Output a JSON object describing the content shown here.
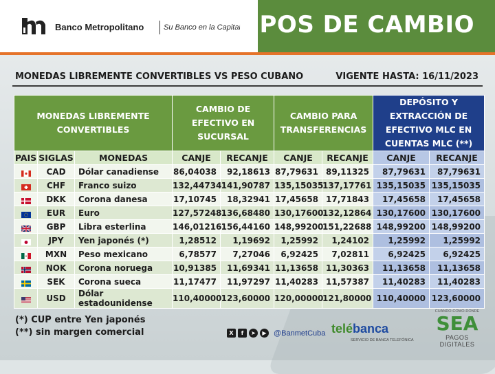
{
  "header": {
    "bank_name": "Banco Metropolitano",
    "slogan": "Su Banco en la Capital",
    "title": "TIPOS DE CAMBIO"
  },
  "subtitle": "MONEDAS LIBREMENTE CONVERTIBLES VS PESO CUBANO",
  "valid_until": "VIGENTE HASTA: 16/11/2023",
  "table": {
    "group_headers": {
      "currencies": "MONEDAS LIBREMENTE CONVERTIBLES",
      "cash": "CAMBIO DE EFECTIVO EN SUCURSAL",
      "transfer": "CAMBIO PARA TRANSFERENCIAS",
      "mlc": "DEPÓSITO Y EXTRACCIÓN DE EFECTIVO MLC EN CUENTAS MLC (**)"
    },
    "columns": [
      "PAIS",
      "SIGLAS",
      "MONEDAS",
      "CANJE",
      "RECANJE",
      "CANJE",
      "RECANJE",
      "CANJE",
      "RECANJE"
    ],
    "rows": [
      {
        "flag": "canada-flag",
        "code": "CAD",
        "name": "Dólar canadiense",
        "cash_canje": "86,04038",
        "cash_recanje": "92,18613",
        "tr_canje": "87,79631",
        "tr_recanje": "89,11325",
        "mlc_canje": "87,79631",
        "mlc_recanje": "87,79631"
      },
      {
        "flag": "switzerland-flag",
        "code": "CHF",
        "name": "Franco suizo",
        "cash_canje": "132,44734",
        "cash_recanje": "141,90787",
        "tr_canje": "135,15035",
        "tr_recanje": "137,17761",
        "mlc_canje": "135,15035",
        "mlc_recanje": "135,15035"
      },
      {
        "flag": "denmark-flag",
        "code": "DKK",
        "name": "Corona danesa",
        "cash_canje": "17,10745",
        "cash_recanje": "18,32941",
        "tr_canje": "17,45658",
        "tr_recanje": "17,71843",
        "mlc_canje": "17,45658",
        "mlc_recanje": "17,45658"
      },
      {
        "flag": "eu-flag",
        "code": "EUR",
        "name": "Euro",
        "cash_canje": "127,57248",
        "cash_recanje": "136,68480",
        "tr_canje": "130,17600",
        "tr_recanje": "132,12864",
        "mlc_canje": "130,17600",
        "mlc_recanje": "130,17600"
      },
      {
        "flag": "uk-flag",
        "code": "GBP",
        "name": "Libra esterlina",
        "cash_canje": "146,01216",
        "cash_recanje": "156,44160",
        "tr_canje": "148,99200",
        "tr_recanje": "151,22688",
        "mlc_canje": "148,99200",
        "mlc_recanje": "148,99200"
      },
      {
        "flag": "japan-flag",
        "code": "JPY",
        "name": "Yen japonés (*)",
        "cash_canje": "1,28512",
        "cash_recanje": "1,19692",
        "tr_canje": "1,25992",
        "tr_recanje": "1,24102",
        "mlc_canje": "1,25992",
        "mlc_recanje": "1,25992"
      },
      {
        "flag": "mexico-flag",
        "code": "MXN",
        "name": "Peso mexicano",
        "cash_canje": "6,78577",
        "cash_recanje": "7,27046",
        "tr_canje": "6,92425",
        "tr_recanje": "7,02811",
        "mlc_canje": "6,92425",
        "mlc_recanje": "6,92425"
      },
      {
        "flag": "norway-flag",
        "code": "NOK",
        "name": "Corona noruega",
        "cash_canje": "10,91385",
        "cash_recanje": "11,69341",
        "tr_canje": "11,13658",
        "tr_recanje": "11,30363",
        "mlc_canje": "11,13658",
        "mlc_recanje": "11,13658"
      },
      {
        "flag": "sweden-flag",
        "code": "SEK",
        "name": "Corona sueca",
        "cash_canje": "11,17477",
        "cash_recanje": "11,97297",
        "tr_canje": "11,40283",
        "tr_recanje": "11,57387",
        "mlc_canje": "11,40283",
        "mlc_recanje": "11,40283"
      },
      {
        "flag": "usa-flag",
        "code": "USD",
        "name": "Dólar estadounidense",
        "cash_canje": "110,40000",
        "cash_recanje": "123,60000",
        "tr_canje": "120,00000",
        "tr_recanje": "121,80000",
        "mlc_canje": "110,40000",
        "mlc_recanje": "123,60000"
      }
    ]
  },
  "notes": [
    "(*) CUP entre Yen japonés",
    "(**) sin margen comercial"
  ],
  "social": {
    "icons": [
      "x-icon",
      "facebook-icon",
      "telegram-icon",
      "youtube-icon"
    ],
    "handle": "@BanmetCuba"
  },
  "telebanca": {
    "name_green": "telé",
    "name_blue": "banca",
    "tagline": "SERVICIO DE BANCA TELEFÓNICA"
  },
  "sea": {
    "top": "CUANDO-COMO-DONDE",
    "logo": "SEA",
    "bottom": "PAGOS DIGITALES"
  },
  "colors": {
    "header_green": "#5b8c3d",
    "accent_orange": "#e5732a",
    "mlc_blue": "#1f3f8a"
  }
}
